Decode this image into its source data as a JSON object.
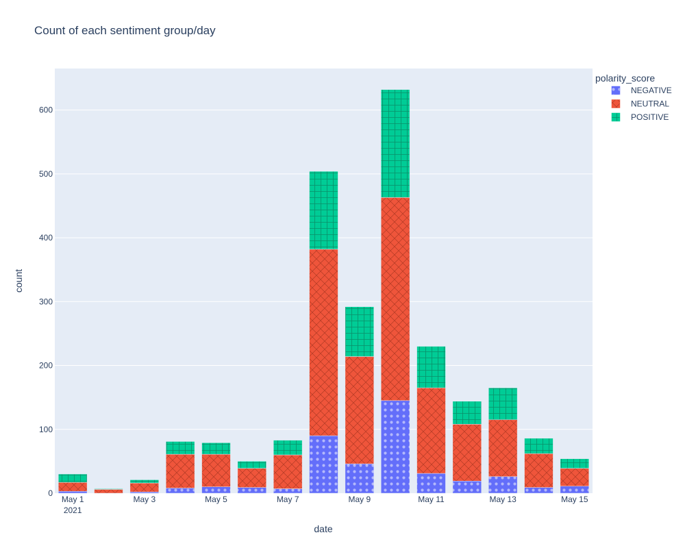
{
  "colors": {
    "plot_background": "#E5ECF6",
    "grid": "#ffffff",
    "text": "#2a3f5f",
    "negative": "#636EFA",
    "neutral": "#EF553B",
    "positive": "#00CC96"
  },
  "chart_data": {
    "type": "bar",
    "barmode": "stack",
    "title": "Count of each sentiment group/day",
    "xlabel": "date",
    "ylabel": "count",
    "legend_title": "polarity_score",
    "legend_position": "top-right, outside plot",
    "grid": true,
    "ylim": [
      0,
      665
    ],
    "yticks": [
      0,
      100,
      200,
      300,
      400,
      500,
      600
    ],
    "categories": [
      "2021-05-01",
      "2021-05-02",
      "2021-05-03",
      "2021-05-04",
      "2021-05-05",
      "2021-05-06",
      "2021-05-07",
      "2021-05-08",
      "2021-05-09",
      "2021-05-10",
      "2021-05-11",
      "2021-05-12",
      "2021-05-13",
      "2021-05-14",
      "2021-05-15"
    ],
    "xtick_labels": [
      {
        "date": "2021-05-01",
        "label": "May 1",
        "sublabel": "2021"
      },
      {
        "date": "2021-05-03",
        "label": "May 3"
      },
      {
        "date": "2021-05-05",
        "label": "May 5"
      },
      {
        "date": "2021-05-07",
        "label": "May 7"
      },
      {
        "date": "2021-05-09",
        "label": "May 9"
      },
      {
        "date": "2021-05-11",
        "label": "May 11"
      },
      {
        "date": "2021-05-13",
        "label": "May 13"
      },
      {
        "date": "2021-05-15",
        "label": "May 15"
      }
    ],
    "series": [
      {
        "name": "NEGATIVE",
        "color": "#636EFA",
        "pattern": "dots",
        "values": [
          3,
          0,
          2,
          8,
          10,
          9,
          7,
          90,
          46,
          145,
          31,
          19,
          26,
          9,
          11
        ]
      },
      {
        "name": "NEUTRAL",
        "color": "#EF553B",
        "pattern": "crosshatch",
        "values": [
          14,
          6,
          14,
          53,
          51,
          30,
          53,
          292,
          168,
          318,
          134,
          89,
          89,
          53,
          28
        ]
      },
      {
        "name": "POSITIVE",
        "color": "#00CC96",
        "pattern": "grid",
        "values": [
          13,
          1,
          5,
          20,
          18,
          11,
          23,
          122,
          78,
          169,
          65,
          36,
          50,
          24,
          15
        ]
      }
    ]
  }
}
